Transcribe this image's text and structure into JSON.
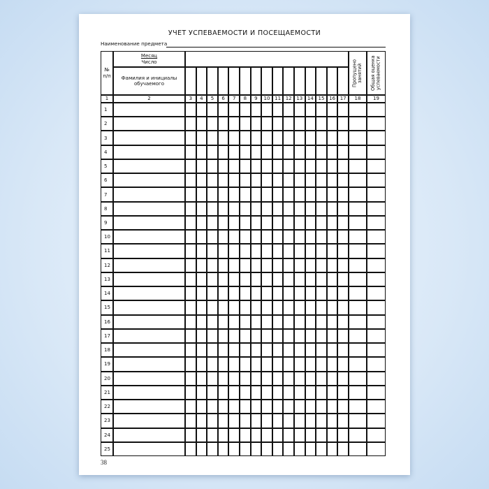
{
  "document": {
    "title": "УЧЕТ УСПЕВАЕМОСТИ И ПОСЕЩАЕМОСТИ",
    "subject_label": "Наименование предмета",
    "page_number": "38"
  },
  "table": {
    "header": {
      "number": "№ п/п",
      "month": "Месяц",
      "day": "Число",
      "name": "Фамилия и инициалы обучаемого",
      "missed": "Пропущено занятий",
      "grade": "Общая оценка успеваемости"
    },
    "column_numbers": [
      "1",
      "2",
      "3",
      "4",
      "5",
      "6",
      "7",
      "8",
      "9",
      "10",
      "11",
      "12",
      "13",
      "14",
      "15",
      "16",
      "17",
      "18",
      "19"
    ],
    "row_numbers": [
      "1",
      "2",
      "3",
      "4",
      "5",
      "6",
      "7",
      "8",
      "9",
      "10",
      "11",
      "12",
      "13",
      "14",
      "15",
      "16",
      "17",
      "18",
      "19",
      "20",
      "21",
      "22",
      "23",
      "24",
      "25"
    ]
  }
}
